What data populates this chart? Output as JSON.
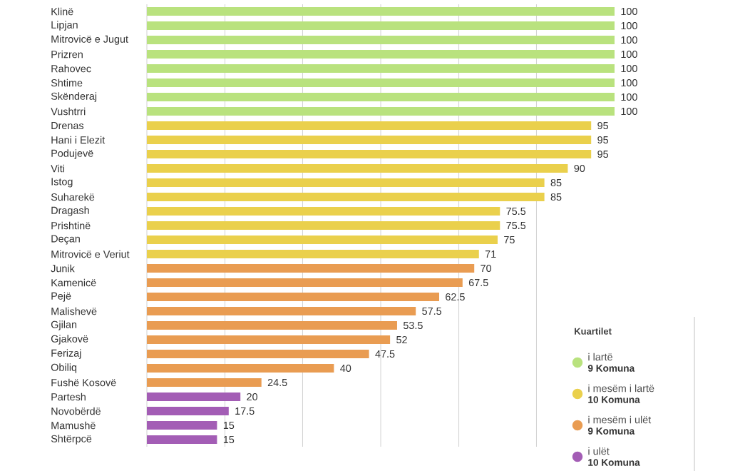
{
  "chart_data": {
    "type": "bar",
    "orientation": "horizontal",
    "legend_title": "Kuartilet",
    "categories": [
      "Klinë",
      "Lipjan",
      "Mitrovicë e Jugut",
      "Prizren",
      "Rahovec",
      "Shtime",
      "Skënderaj",
      "Vushtrri",
      "Drenas",
      "Hani i Elezit",
      "Podujevë",
      "Viti",
      "Istog",
      "Suharekë",
      "Dragash",
      "Prishtinë",
      "Deçan",
      "Mitrovicë e Veriut",
      "Junik",
      "Kamenicë",
      "Pejë",
      "Malishevë",
      "Gjilan",
      "Gjakovë",
      "Ferizaj",
      "Obiliq",
      "Fushë Kosovë",
      "Partesh",
      "Novobërdë",
      "Mamushë",
      "Shtërpcë"
    ],
    "series": [
      {
        "name": "i lartë",
        "color": "#b9e27e",
        "values": [
          100,
          100,
          100,
          100,
          100,
          100,
          100,
          100,
          null,
          null,
          null,
          null,
          null,
          null,
          null,
          null,
          null,
          null,
          null,
          null,
          null,
          null,
          null,
          null,
          null,
          null,
          null,
          null,
          null,
          null,
          null
        ]
      },
      {
        "name": "i mesëm i lartë",
        "color": "#ead04c",
        "values": [
          null,
          null,
          null,
          null,
          null,
          null,
          null,
          null,
          95,
          95,
          95,
          90,
          85,
          85,
          75.5,
          75.5,
          75,
          71,
          null,
          null,
          null,
          null,
          null,
          null,
          null,
          null,
          null,
          null,
          null,
          null,
          null
        ]
      },
      {
        "name": "i mesëm i ulët",
        "color": "#e99c52",
        "values": [
          null,
          null,
          null,
          null,
          null,
          null,
          null,
          null,
          null,
          null,
          null,
          null,
          null,
          null,
          null,
          null,
          null,
          null,
          70,
          67.5,
          62.5,
          57.5,
          53.5,
          52,
          47.5,
          40,
          24.5,
          null,
          null,
          null,
          null
        ]
      },
      {
        "name": "i ulët",
        "color": "#a35db5",
        "values": [
          null,
          null,
          null,
          null,
          null,
          null,
          null,
          null,
          null,
          null,
          null,
          null,
          null,
          null,
          null,
          null,
          null,
          null,
          null,
          null,
          null,
          null,
          null,
          null,
          null,
          null,
          null,
          20,
          17.5,
          15,
          15
        ]
      }
    ],
    "annotations": [
      "9 Komuna",
      "10 Komuna",
      "9 Komuna",
      "10 Komuna"
    ],
    "xlim": [
      0,
      100
    ],
    "xticks": [
      {
        "value": 0,
        "label": null
      },
      {
        "value": 16.7,
        "label": null
      },
      {
        "value": 33.3,
        "label": null
      },
      {
        "value": 50,
        "label": null
      },
      {
        "value": 66.7,
        "label": null
      },
      {
        "value": 83.3,
        "label": null
      }
    ],
    "grid": "x",
    "data_labels": true,
    "legend": "bottom right"
  }
}
